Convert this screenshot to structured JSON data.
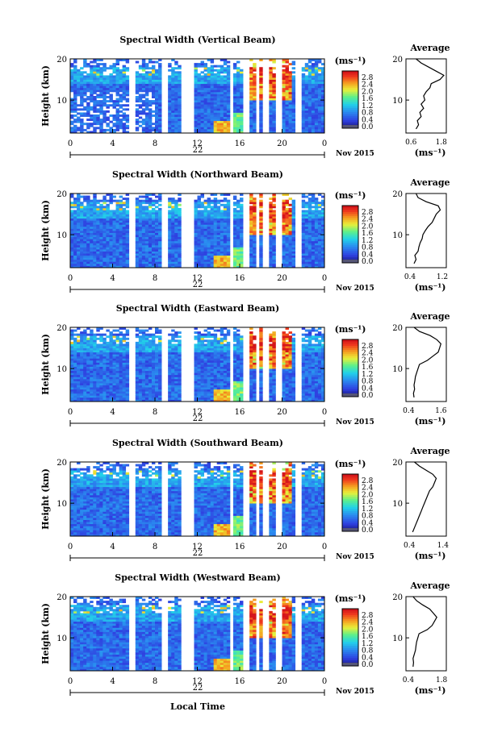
{
  "figure": {
    "xlabel": "Local Time",
    "date_label": "Nov 2015",
    "ylabel": "Height (km)",
    "colorbar_unit": "(ms⁻¹)",
    "colorbar_ticks": [
      "2.8",
      "2.4",
      "2.0",
      "1.6",
      "1.2",
      "0.8",
      "0.4",
      "0.0"
    ],
    "x_ticks": [
      "0",
      "4",
      "8",
      "12",
      "16",
      "20",
      "0"
    ],
    "day_label": "22",
    "avg_title": "Average",
    "avg_xlabel": "(ms⁻¹)",
    "y_ticks": [
      "20",
      "10"
    ]
  },
  "chart_data": [
    {
      "type": "heatmap",
      "title": "Spectral Width (Vertical Beam)",
      "xlabel": "Local Time",
      "ylabel": "Height (km)",
      "xlim": [
        0,
        24
      ],
      "ylim": [
        2,
        20
      ],
      "colorbar": {
        "label": "(ms⁻¹)",
        "range": [
          0.0,
          2.8
        ]
      },
      "data_gaps_hours": [
        [
          5.5,
          6.0
        ],
        [
          8.7,
          9.2
        ],
        [
          10.6,
          11.7
        ],
        [
          15.0,
          15.4
        ],
        [
          16.2,
          16.8
        ],
        [
          17.5,
          17.7
        ],
        [
          18.3,
          18.7
        ],
        [
          19.4,
          19.9
        ],
        [
          21.3,
          21.9
        ]
      ],
      "profile": {
        "title": "Average",
        "xlabel": "(ms⁻¹)",
        "xticks": [
          "0.6",
          "1.8"
        ],
        "xlim": [
          0.4,
          2.0
        ],
        "height_km": [
          3,
          4,
          5,
          6,
          7,
          8,
          9,
          10,
          11,
          12,
          13,
          14,
          15,
          16,
          17,
          18,
          19,
          20
        ],
        "values": [
          0.8,
          0.9,
          0.85,
          1.0,
          0.95,
          1.1,
          1.0,
          1.15,
          1.1,
          1.2,
          1.35,
          1.4,
          1.75,
          1.9,
          1.6,
          1.3,
          1.0,
          0.8
        ]
      }
    },
    {
      "type": "heatmap",
      "title": "Spectral Width (Northward Beam)",
      "xlabel": "Local Time",
      "ylabel": "Height (km)",
      "xlim": [
        0,
        24
      ],
      "ylim": [
        2,
        20
      ],
      "colorbar": {
        "label": "(ms⁻¹)",
        "range": [
          0.0,
          2.8
        ]
      },
      "data_gaps_hours": [
        [
          5.5,
          6.0
        ],
        [
          8.7,
          9.2
        ],
        [
          10.6,
          11.7
        ],
        [
          15.0,
          15.4
        ],
        [
          16.2,
          16.8
        ],
        [
          17.5,
          17.7
        ],
        [
          18.3,
          18.7
        ],
        [
          19.4,
          19.9
        ],
        [
          21.3,
          21.9
        ]
      ],
      "profile": {
        "title": "Average",
        "xlabel": "(ms⁻¹)",
        "xticks": [
          "0.4",
          "1.2"
        ],
        "xlim": [
          0.3,
          1.3
        ],
        "height_km": [
          3,
          4,
          5,
          6,
          7,
          8,
          9,
          10,
          11,
          12,
          13,
          14,
          15,
          16,
          17,
          18,
          19,
          20
        ],
        "values": [
          0.5,
          0.55,
          0.52,
          0.6,
          0.62,
          0.65,
          0.7,
          0.72,
          0.78,
          0.85,
          0.95,
          1.0,
          1.05,
          1.15,
          1.1,
          0.8,
          0.6,
          0.55
        ]
      }
    },
    {
      "type": "heatmap",
      "title": "Spectral Width (Eastward Beam)",
      "xlabel": "Local Time",
      "ylabel": "Height (km)",
      "xlim": [
        0,
        24
      ],
      "ylim": [
        2,
        20
      ],
      "colorbar": {
        "label": "(ms⁻¹)",
        "range": [
          0.0,
          2.8
        ]
      },
      "data_gaps_hours": [
        [
          5.5,
          6.0
        ],
        [
          8.7,
          9.2
        ],
        [
          10.6,
          11.7
        ],
        [
          15.0,
          15.4
        ],
        [
          16.2,
          16.8
        ],
        [
          17.5,
          17.7
        ],
        [
          18.3,
          18.7
        ],
        [
          19.4,
          19.9
        ],
        [
          21.3,
          21.9
        ]
      ],
      "profile": {
        "title": "Average",
        "xlabel": "(ms⁻¹)",
        "xticks": [
          "0.4",
          "1.6"
        ],
        "xlim": [
          0.3,
          1.8
        ],
        "height_km": [
          3,
          4,
          5,
          6,
          7,
          8,
          9,
          10,
          11,
          12,
          13,
          14,
          15,
          16,
          17,
          18,
          19,
          20
        ],
        "values": [
          0.6,
          0.58,
          0.62,
          0.6,
          0.63,
          0.65,
          0.7,
          0.75,
          0.8,
          1.1,
          1.3,
          1.5,
          1.55,
          1.6,
          1.45,
          1.2,
          0.8,
          0.6
        ]
      }
    },
    {
      "type": "heatmap",
      "title": "Spectral Width (Southward Beam)",
      "xlabel": "Local Time",
      "ylabel": "Height (km)",
      "xlim": [
        0,
        24
      ],
      "ylim": [
        2,
        20
      ],
      "colorbar": {
        "label": "(ms⁻¹)",
        "range": [
          0.0,
          2.8
        ]
      },
      "data_gaps_hours": [
        [
          5.5,
          6.0
        ],
        [
          8.7,
          9.2
        ],
        [
          10.6,
          11.7
        ],
        [
          15.0,
          15.4
        ],
        [
          16.2,
          16.8
        ],
        [
          17.5,
          17.7
        ],
        [
          18.3,
          18.7
        ],
        [
          19.4,
          19.9
        ],
        [
          21.3,
          21.9
        ]
      ],
      "profile": {
        "title": "Average",
        "xlabel": "(ms⁻¹)",
        "xticks": [
          "0.4",
          "1.4"
        ],
        "xlim": [
          0.3,
          1.5
        ],
        "height_km": [
          3,
          4,
          5,
          6,
          7,
          8,
          9,
          10,
          11,
          12,
          13,
          14,
          15,
          16,
          17,
          18,
          19,
          20
        ],
        "values": [
          0.5,
          0.55,
          0.6,
          0.65,
          0.7,
          0.75,
          0.8,
          0.85,
          0.9,
          0.95,
          1.0,
          1.1,
          1.15,
          1.2,
          1.1,
          0.9,
          0.7,
          0.55
        ]
      }
    },
    {
      "type": "heatmap",
      "title": "Spectral Width (Westward Beam)",
      "xlabel": "Local Time",
      "ylabel": "Height (km)",
      "xlim": [
        0,
        24
      ],
      "ylim": [
        2,
        20
      ],
      "colorbar": {
        "label": "(ms⁻¹)",
        "range": [
          0.0,
          2.8
        ]
      },
      "data_gaps_hours": [
        [
          5.5,
          6.0
        ],
        [
          8.7,
          9.2
        ],
        [
          10.6,
          11.7
        ],
        [
          15.0,
          15.4
        ],
        [
          16.2,
          16.8
        ],
        [
          17.5,
          17.7
        ],
        [
          18.3,
          18.7
        ],
        [
          19.4,
          19.9
        ],
        [
          21.3,
          21.9
        ]
      ],
      "profile": {
        "title": "Average",
        "xlabel": "(ms⁻¹)",
        "xticks": [
          "0.4",
          "1.8"
        ],
        "xlim": [
          0.3,
          2.0
        ],
        "height_km": [
          3,
          4,
          5,
          6,
          7,
          8,
          9,
          10,
          11,
          12,
          13,
          14,
          15,
          16,
          17,
          18,
          19,
          20
        ],
        "values": [
          0.6,
          0.62,
          0.6,
          0.65,
          0.7,
          0.72,
          0.75,
          0.8,
          0.85,
          1.2,
          1.4,
          1.5,
          1.6,
          1.45,
          1.3,
          1.0,
          0.75,
          0.6
        ]
      }
    }
  ]
}
